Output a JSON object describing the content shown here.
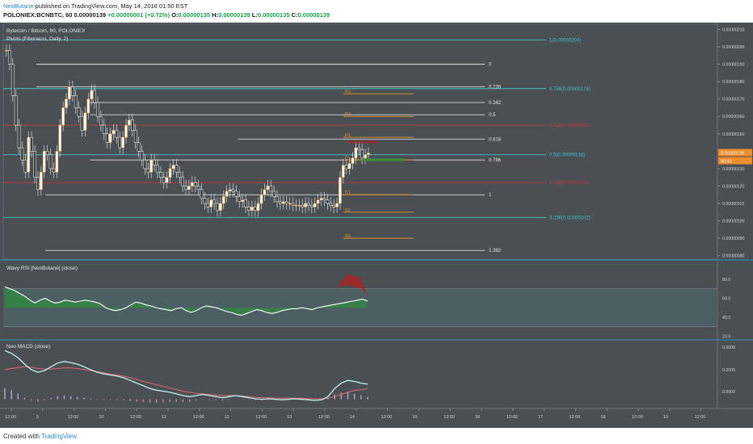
{
  "header": {
    "author": "NeoButane",
    "published_text": "published on TradingView.com, May 14, 2018 01:50 EST",
    "symbol": "POLONIEX:BCNBTC, 60",
    "last": "0.00000139",
    "change": "+0.00000001 (+0.72%)",
    "ohlc": {
      "o": "0.00000135",
      "h": "0.00000139",
      "l": "0.00000135",
      "c": "0.00000139"
    }
  },
  "footer": {
    "created_with": "Created with",
    "brand": "TradingView"
  },
  "colors": {
    "bg": "#494f53",
    "fib": "#f0f0f0",
    "fib_cyan": "#3fc5c9",
    "pivot": "#e0922a",
    "fib_red": "#c43a3a",
    "candle_up": "#ffffff",
    "candle_down": "#ffffff",
    "rsi_fill_up": "#2e8b3e",
    "rsi_fill_down": "#9b2a2a",
    "macd": "#bff5ef",
    "signal": "#e0677a",
    "price_badge": "#ef8c2c"
  },
  "chart_data": [
    {
      "type": "candlestick",
      "legend": [
        "Bytecoin / Bitcoin, 60, POLONIEX",
        "Pivots (Fibonacci, Daily, 2)"
      ],
      "x_ticks": [
        "12:00",
        "9",
        "12:00",
        "10",
        "12:00",
        "11",
        "12:00",
        "12",
        "12:00",
        "13",
        "12:00",
        "14",
        "12:00",
        "15",
        "12:00",
        "16",
        "12:00",
        "17",
        "12:00",
        "18",
        "12:00",
        "19",
        "12:00"
      ],
      "y_ticks": [
        "0.00000210",
        "0.00000200",
        "0.00000190",
        "0.00000180",
        "0.00000170",
        "0.00000160",
        "0.00000150",
        "0.00000140",
        "0.00000130",
        "0.00000120",
        "0.00000110",
        "0.00000100",
        "0.00000090",
        "0.00000080"
      ],
      "ylim": [
        7.8e-07,
        2.13e-06
      ],
      "price_badges": [
        "0.00000139",
        "00:42"
      ],
      "fib_levels": [
        {
          "label": "0",
          "price": 1.9e-06,
          "color": "fib",
          "x_start": 0.0
        },
        {
          "label": "0.236",
          "price": 1.77e-06,
          "color": "fib",
          "x_start": 0.0
        },
        {
          "label": "0.382",
          "price": 1.68e-06,
          "color": "fib",
          "x_start": 0.12
        },
        {
          "label": "0.5",
          "price": 1.61e-06,
          "color": "fib",
          "x_start": 0.12
        },
        {
          "label": "0.618",
          "price": 1.47e-06,
          "color": "fib",
          "x_start": 0.45
        },
        {
          "label": "0.786",
          "price": 1.35e-06,
          "color": "fib",
          "x_start": 0.12
        },
        {
          "label": "1",
          "price": 1.15e-06,
          "color": "fib",
          "x_start": 0.02
        },
        {
          "label": "1.382",
          "price": 8.3e-07,
          "color": "fib",
          "x_start": 0.02
        }
      ],
      "fib_cyan_levels": [
        {
          "label": "1(0.00000204)",
          "price": 2.04e-06
        },
        {
          "label": "0.786(0.00000176)",
          "price": 1.76e-06
        },
        {
          "label": "0.5(0.00000138)",
          "price": 1.38e-06
        },
        {
          "label": "0.236(0.00000102)",
          "price": 1.02e-06
        }
      ],
      "fib_red_levels": [
        {
          "label": "0.618(0.00000155)",
          "price": 1.55e-06
        },
        {
          "label": "0.382(0.00000122)",
          "price": 1.22e-06
        }
      ],
      "pivots": [
        {
          "label": "R3",
          "price": 1.73e-06
        },
        {
          "label": "R2",
          "price": 1.6e-06
        },
        {
          "label": "R1",
          "price": 1.48e-06
        },
        {
          "label": "P",
          "price": 1.35e-06
        },
        {
          "label": "S1",
          "price": 1.15e-06
        },
        {
          "label": "S2",
          "price": 1.05e-06
        },
        {
          "label": "S3",
          "price": 9e-07
        }
      ],
      "candles_close": [
        1.98e-06,
        1.9e-06,
        1.72e-06,
        1.55e-06,
        1.42e-06,
        1.35e-06,
        1.28e-06,
        1.48e-06,
        1.4e-06,
        1.25e-06,
        1.18e-06,
        1.28e-06,
        1.4e-06,
        1.38e-06,
        1.3e-06,
        1.28e-06,
        1.4e-06,
        1.55e-06,
        1.65e-06,
        1.7e-06,
        1.77e-06,
        1.72e-06,
        1.65e-06,
        1.6e-06,
        1.52e-06,
        1.62e-06,
        1.7e-06,
        1.75e-06,
        1.68e-06,
        1.6e-06,
        1.55e-06,
        1.5e-06,
        1.45e-06,
        1.5e-06,
        1.52e-06,
        1.48e-06,
        1.42e-06,
        1.48e-06,
        1.55e-06,
        1.58e-06,
        1.52e-06,
        1.45e-06,
        1.4e-06,
        1.35e-06,
        1.3e-06,
        1.28e-06,
        1.35e-06,
        1.32e-06,
        1.28e-06,
        1.25e-06,
        1.22e-06,
        1.25e-06,
        1.3e-06,
        1.32e-06,
        1.28e-06,
        1.25e-06,
        1.2e-06,
        1.18e-06,
        1.2e-06,
        1.22e-06,
        1.2e-06,
        1.18e-06,
        1.13e-06,
        1.1e-06,
        1.08e-06,
        1.12e-06,
        1.1e-06,
        1.06e-06,
        1.1e-06,
        1.14e-06,
        1.17e-06,
        1.18e-06,
        1.17e-06,
        1.14e-06,
        1.11e-06,
        1.12e-06,
        1.08e-06,
        1.06e-06,
        1.08e-06,
        1.06e-06,
        1.1e-06,
        1.15e-06,
        1.18e-06,
        1.2e-06,
        1.17e-06,
        1.14e-06,
        1.11e-06,
        1.1e-06,
        1.11e-06,
        1.1e-06,
        1.1e-06,
        1.09e-06,
        1.09e-06,
        1.09e-06,
        1.08e-06,
        1.1e-06,
        1.09e-06,
        1.08e-06,
        1.1e-06,
        1.12e-06,
        1.13e-06,
        1.12e-06,
        1.1e-06,
        1.09e-06,
        1.08e-06,
        1.1e-06,
        1.25e-06,
        1.32e-06,
        1.3e-06,
        1.33e-06,
        1.36e-06,
        1.42e-06,
        1.41e-06,
        1.36e-06,
        1.38e-06,
        1.39e-06
      ]
    },
    {
      "type": "area",
      "legend": "Wavy RSI [NeoButane] (close)",
      "y_ticks": [
        "80.0",
        "60.0",
        "40.0",
        "20.0"
      ],
      "ylim": [
        17,
        97
      ],
      "bands": [
        70,
        30
      ],
      "white_line": [
        72,
        70,
        68,
        65,
        62,
        58,
        55,
        58,
        60,
        57,
        55,
        56,
        58,
        57,
        56,
        57,
        58,
        57,
        56,
        54,
        50,
        48,
        47,
        48,
        50,
        53,
        56,
        55,
        53,
        52,
        50,
        49,
        48,
        47,
        49,
        50,
        47,
        45,
        47,
        50,
        52,
        51,
        50,
        48,
        46,
        45,
        43,
        42,
        44,
        46,
        48,
        47,
        45,
        44,
        45,
        47,
        48,
        49,
        49,
        50,
        49,
        48,
        50,
        51,
        52,
        53,
        54,
        55,
        56,
        57,
        58,
        59,
        57
      ]
    },
    {
      "type": "line",
      "legend": "Neo MACD (close)",
      "y_ticks": [
        "0.0000",
        "0.0000",
        "0.0000"
      ],
      "macd": [
        0.95,
        0.9,
        0.82,
        0.7,
        0.6,
        0.55,
        0.58,
        0.65,
        0.72,
        0.75,
        0.73,
        0.7,
        0.65,
        0.6,
        0.55,
        0.52,
        0.5,
        0.48,
        0.45,
        0.4,
        0.35,
        0.3,
        0.25,
        0.22,
        0.2,
        0.18,
        0.15,
        0.12,
        0.1,
        0.12,
        0.14,
        0.12,
        0.1,
        0.08,
        0.1,
        0.12,
        0.1,
        0.08,
        0.06,
        0.05,
        0.06,
        0.05,
        0.04,
        0.05,
        0.06,
        0.05,
        0.04,
        0.03,
        0.04,
        0.1,
        0.25,
        0.35,
        0.4,
        0.38,
        0.35,
        0.33
      ],
      "signal": [
        0.6,
        0.62,
        0.64,
        0.65,
        0.64,
        0.62,
        0.61,
        0.61,
        0.62,
        0.63,
        0.63,
        0.62,
        0.6,
        0.58,
        0.56,
        0.54,
        0.52,
        0.5,
        0.48,
        0.45,
        0.42,
        0.38,
        0.35,
        0.32,
        0.29,
        0.26,
        0.23,
        0.2,
        0.18,
        0.16,
        0.15,
        0.14,
        0.13,
        0.12,
        0.12,
        0.12,
        0.11,
        0.1,
        0.09,
        0.08,
        0.08,
        0.07,
        0.07,
        0.07,
        0.07,
        0.07,
        0.06,
        0.06,
        0.06,
        0.07,
        0.1,
        0.14,
        0.18,
        0.21,
        0.23,
        0.25
      ]
    }
  ]
}
